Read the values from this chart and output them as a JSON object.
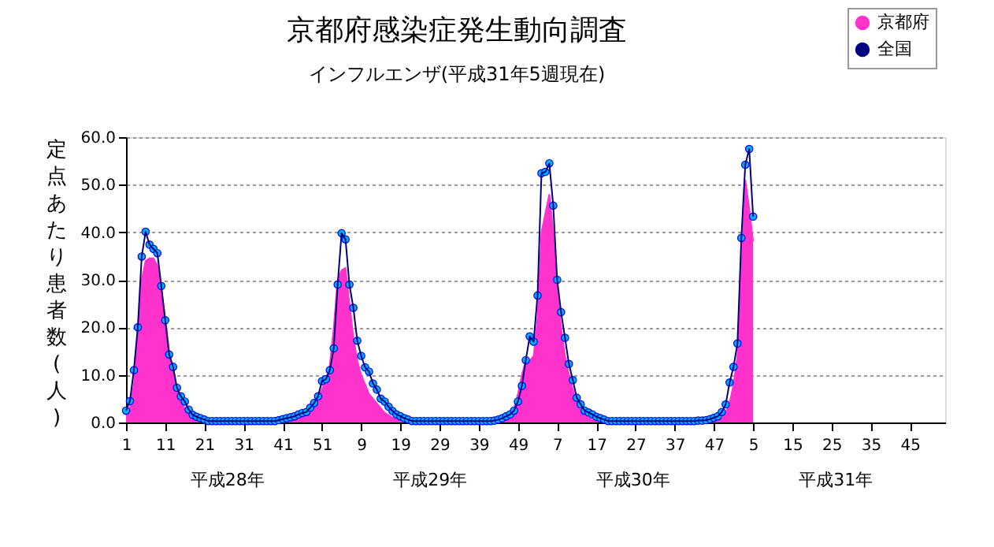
{
  "chart_data": {
    "type": "area",
    "title": "京都府感染症発生動向調査",
    "subtitle": "インフルエンザ(平成31年5週現在)",
    "ylabel": "定点あたり患者数(人)",
    "annotations": [
      "平成28年",
      "平成29年",
      "平成30年",
      "平成31年"
    ],
    "categories": [
      "1",
      null,
      null,
      null,
      null,
      null,
      null,
      null,
      null,
      null,
      "11",
      null,
      null,
      null,
      null,
      null,
      null,
      null,
      null,
      null,
      "21",
      null,
      null,
      null,
      null,
      null,
      null,
      null,
      null,
      null,
      "31",
      null,
      null,
      null,
      null,
      null,
      null,
      null,
      null,
      null,
      "41",
      null,
      null,
      null,
      null,
      null,
      null,
      null,
      null,
      null,
      "51",
      null,
      null,
      null,
      null,
      null,
      null,
      null,
      null,
      null,
      "9",
      null,
      null,
      null,
      null,
      null,
      null,
      null,
      null,
      null,
      "19",
      null,
      null,
      null,
      null,
      null,
      null,
      null,
      null,
      null,
      "29",
      null,
      null,
      null,
      null,
      null,
      null,
      null,
      null,
      null,
      "39",
      null,
      null,
      null,
      null,
      null,
      null,
      null,
      null,
      null,
      "49",
      null,
      null,
      null,
      null,
      null,
      null,
      null,
      null,
      null,
      "7",
      null,
      null,
      null,
      null,
      null,
      null,
      null,
      null,
      null,
      "17",
      null,
      null,
      null,
      null,
      null,
      null,
      null,
      null,
      null,
      "27",
      null,
      null,
      null,
      null,
      null,
      null,
      null,
      null,
      null,
      "37",
      null,
      null,
      null,
      null,
      null,
      null,
      null,
      null,
      null,
      "47",
      null,
      null,
      null,
      null,
      null,
      null,
      null,
      null,
      null,
      "5",
      null,
      null,
      null,
      null,
      null,
      null,
      null,
      null,
      null,
      "15",
      null,
      null,
      null,
      null,
      null,
      null,
      null,
      null,
      null,
      "25",
      null,
      null,
      null,
      null,
      null,
      null,
      null,
      null,
      null,
      "35",
      null,
      null,
      null,
      null,
      null,
      null,
      null,
      null,
      null,
      "45",
      null,
      null,
      null,
      null,
      null,
      null,
      null,
      null,
      null
    ],
    "series": [
      {
        "name": "京都府",
        "color": "#ff33cc",
        "values": [
          1.5,
          3.0,
          8.0,
          18.0,
          30.0,
          34.0,
          34.5,
          34.5,
          33.0,
          28.0,
          22.0,
          15.0,
          11.0,
          7.0,
          4.0,
          3.0,
          2.0,
          1.0,
          0.7,
          0.5,
          0.3,
          0.2,
          0.2,
          0.2,
          0.2,
          0.2,
          0.2,
          0.2,
          0.2,
          0.2,
          0.2,
          0.2,
          0.2,
          0.2,
          0.2,
          0.2,
          0.2,
          0.2,
          0.2,
          0.2,
          0.2,
          0.2,
          0.5,
          0.8,
          1.2,
          1.5,
          2.0,
          2.5,
          3.5,
          5.0,
          7.0,
          9.0,
          12.0,
          20.0,
          30.0,
          32.0,
          32.5,
          25.0,
          18.0,
          13.0,
          10.0,
          8.0,
          6.0,
          5.0,
          4.0,
          3.0,
          2.0,
          1.5,
          1.0,
          0.7,
          0.5,
          0.3,
          0.2,
          0.2,
          0.2,
          0.2,
          0.2,
          0.2,
          0.2,
          0.2,
          0.2,
          0.2,
          0.2,
          0.2,
          0.2,
          0.2,
          0.2,
          0.2,
          0.2,
          0.2,
          0.2,
          0.2,
          0.2,
          0.2,
          0.2,
          0.2,
          0.5,
          1.0,
          1.5,
          3.0,
          6.0,
          10.0,
          13.0,
          13.0,
          14.0,
          22.0,
          40.0,
          44.0,
          48.0,
          40.0,
          28.0,
          20.0,
          14.0,
          10.0,
          7.0,
          4.0,
          2.5,
          1.5,
          1.0,
          0.5,
          0.2,
          0.2,
          0.2,
          0.2,
          0.2,
          0.2,
          0.2,
          0.2,
          0.2,
          0.2,
          0.2,
          0.2,
          0.2,
          0.2,
          0.2,
          0.2,
          0.2,
          0.2,
          0.2,
          0.2,
          0.2,
          0.2,
          0.2,
          0.2,
          0.2,
          0.2,
          0.2,
          0.2,
          0.2,
          0.2,
          0.2,
          0.3,
          0.8,
          2.0,
          4.0,
          8.0,
          14.0,
          32.0,
          51.0,
          45.0,
          38.0,
          null,
          null,
          null,
          null,
          null,
          null,
          null,
          null,
          null,
          null,
          null,
          null,
          null,
          null,
          null,
          null,
          null,
          null,
          null,
          null,
          null,
          null,
          null,
          null,
          null,
          null,
          null,
          null,
          null,
          null,
          null,
          null,
          null,
          null,
          null,
          null,
          null,
          null,
          null,
          null,
          null,
          null,
          null,
          null,
          null,
          null,
          null,
          null,
          null
        ]
      },
      {
        "name": "全国",
        "type": "line",
        "marker": "circle",
        "color": "#000080",
        "values": [
          2.5,
          4.5,
          11.0,
          20.0,
          34.9,
          40.1,
          37.4,
          36.5,
          35.6,
          28.7,
          21.5,
          14.3,
          11.7,
          7.3,
          5.5,
          4.4,
          2.7,
          1.6,
          1.2,
          0.9,
          0.6,
          0.3,
          0.3,
          0.3,
          0.3,
          0.3,
          0.3,
          0.3,
          0.3,
          0.3,
          0.3,
          0.3,
          0.3,
          0.3,
          0.3,
          0.3,
          0.3,
          0.3,
          0.3,
          0.5,
          0.7,
          0.9,
          1.1,
          1.3,
          1.7,
          2.0,
          2.2,
          3.1,
          4.1,
          5.5,
          8.7,
          9.1,
          11.0,
          15.6,
          29.0,
          39.8,
          38.5,
          29.0,
          24.1,
          17.2,
          14.0,
          11.6,
          10.7,
          8.2,
          6.9,
          5.0,
          4.4,
          3.3,
          2.4,
          1.7,
          1.3,
          0.9,
          0.6,
          0.3,
          0.3,
          0.3,
          0.3,
          0.3,
          0.3,
          0.3,
          0.3,
          0.3,
          0.3,
          0.3,
          0.3,
          0.3,
          0.3,
          0.3,
          0.3,
          0.3,
          0.3,
          0.3,
          0.3,
          0.3,
          0.4,
          0.6,
          0.9,
          1.3,
          1.7,
          2.5,
          4.4,
          7.7,
          13.1,
          18.1,
          17.0,
          26.7,
          52.4,
          52.7,
          54.5,
          45.6,
          30.0,
          23.2,
          17.8,
          12.3,
          8.9,
          5.2,
          3.8,
          2.5,
          2.1,
          1.7,
          1.2,
          0.9,
          0.6,
          0.3,
          0.3,
          0.3,
          0.3,
          0.3,
          0.3,
          0.3,
          0.3,
          0.3,
          0.3,
          0.3,
          0.3,
          0.3,
          0.3,
          0.3,
          0.3,
          0.3,
          0.3,
          0.3,
          0.3,
          0.3,
          0.3,
          0.3,
          0.4,
          0.4,
          0.5,
          0.7,
          1.0,
          1.3,
          2.2,
          3.8,
          8.4,
          11.7,
          16.6,
          38.8,
          54.2,
          57.5,
          43.3,
          null,
          null,
          null,
          null,
          null,
          null,
          null,
          null,
          null,
          null,
          null,
          null,
          null,
          null,
          null,
          null,
          null,
          null,
          null,
          null,
          null,
          null,
          null,
          null,
          null,
          null,
          null,
          null,
          null,
          null,
          null,
          null,
          null,
          null,
          null,
          null,
          null,
          null,
          null,
          null,
          null,
          null,
          null,
          null,
          null,
          null,
          null,
          null,
          null
        ]
      }
    ],
    "ylim": [
      0,
      60
    ],
    "yticks": [
      {
        "value": 0,
        "label": "0.0"
      },
      {
        "value": 10,
        "label": "10.0"
      },
      {
        "value": 20,
        "label": "20.0"
      },
      {
        "value": 30,
        "label": "30.0"
      },
      {
        "value": 40,
        "label": "40.0"
      },
      {
        "value": 50,
        "label": "50.0"
      },
      {
        "value": 60,
        "label": "60.0"
      }
    ],
    "grid": "y",
    "legend": "top right"
  }
}
